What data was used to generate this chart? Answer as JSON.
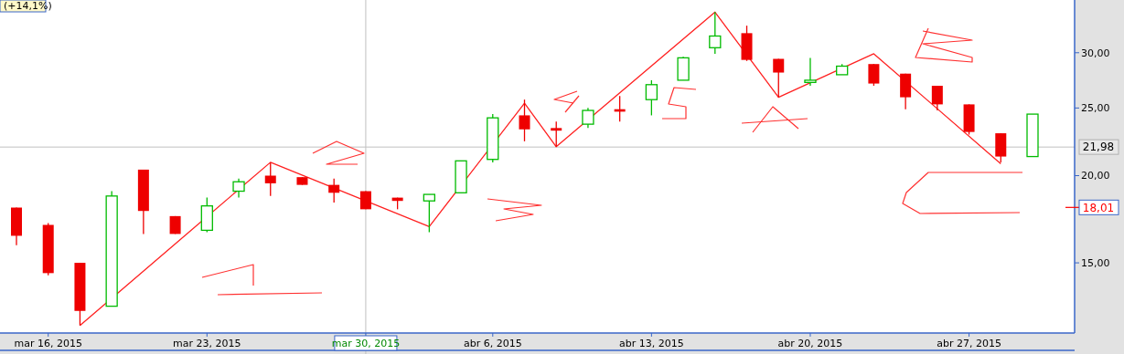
{
  "chart_data": {
    "type": "candlestick",
    "log": true,
    "ylim": [
      11.9,
      35.7
    ],
    "yticks": [
      {
        "value": 15,
        "label": "15,00"
      },
      {
        "value": 20,
        "label": "20,00"
      },
      {
        "value": 25,
        "label": "25,00"
      },
      {
        "value": 30,
        "label": "30,00"
      }
    ],
    "categories": [
      null,
      "mar 16, 2015",
      null,
      null,
      null,
      null,
      "mar 23, 2015",
      null,
      null,
      null,
      null,
      "mar 30, 2015",
      null,
      null,
      null,
      "abr 6, 2015",
      null,
      null,
      null,
      null,
      "abr 13, 2015",
      null,
      null,
      null,
      null,
      "abr 20, 2015",
      null,
      null,
      null,
      null,
      "abr 27, 2015",
      null,
      null
    ],
    "ohlc": [
      [
        18.0,
        18.0,
        15.9,
        16.4
      ],
      [
        17.0,
        17.1,
        14.4,
        14.5
      ],
      [
        15.0,
        15.0,
        12.2,
        12.8
      ],
      [
        13.0,
        19.0,
        13.0,
        18.7
      ],
      [
        20.4,
        20.4,
        16.5,
        17.8
      ],
      [
        17.5,
        17.5,
        16.5,
        16.5
      ],
      [
        16.7,
        18.6,
        16.6,
        18.1
      ],
      [
        19.0,
        19.8,
        18.6,
        19.6
      ],
      [
        20.0,
        20.9,
        18.7,
        19.5
      ],
      [
        19.9,
        19.9,
        19.4,
        19.4
      ],
      [
        19.4,
        19.8,
        18.3,
        18.9
      ],
      [
        19.0,
        19.0,
        17.9,
        17.9
      ],
      [
        18.6,
        18.6,
        17.9,
        18.4
      ],
      [
        18.4,
        18.8,
        16.6,
        18.8
      ],
      [
        18.9,
        21.0,
        18.9,
        21.0
      ],
      [
        21.1,
        24.5,
        20.9,
        24.2
      ],
      [
        24.4,
        25.7,
        22.4,
        23.3
      ],
      [
        23.4,
        23.9,
        22.0,
        23.2
      ],
      [
        23.7,
        25.0,
        23.4,
        24.8
      ],
      [
        24.9,
        26.0,
        23.9,
        24.7
      ],
      [
        25.7,
        27.4,
        24.4,
        27.0
      ],
      [
        27.4,
        29.6,
        27.4,
        29.5
      ],
      [
        30.5,
        34.3,
        29.9,
        31.7
      ],
      [
        32.0,
        32.8,
        29.2,
        29.3
      ],
      [
        29.4,
        29.4,
        25.9,
        28.1
      ],
      [
        27.2,
        29.5,
        26.9,
        27.4
      ],
      [
        27.9,
        28.9,
        27.9,
        28.7
      ],
      [
        28.9,
        28.9,
        26.9,
        27.1
      ],
      [
        28.0,
        28.0,
        24.9,
        25.9
      ],
      [
        26.9,
        26.9,
        24.8,
        25.3
      ],
      [
        25.3,
        25.3,
        22.9,
        23.1
      ],
      [
        23.0,
        23.0,
        20.9,
        21.3
      ],
      [
        21.3,
        24.5,
        21.3,
        24.5
      ]
    ],
    "series": [
      {
        "type": "line",
        "color": "#ff2020",
        "values": [
          null,
          null,
          12.2,
          null,
          null,
          null,
          null,
          null,
          20.9,
          null,
          null,
          null,
          null,
          16.9,
          null,
          null,
          25.4,
          22.0,
          null,
          null,
          null,
          null,
          34.3,
          null,
          25.9,
          null,
          null,
          29.9,
          null,
          null,
          null,
          20.8,
          null
        ]
      }
    ],
    "ref_lines": [
      {
        "axis": "y",
        "value": 21.98,
        "label": "21,98",
        "color": "#c0c0c0"
      },
      {
        "axis": "y",
        "value": 18.01,
        "label": "18,01",
        "color": "#ff0000"
      },
      {
        "axis": "x",
        "value": "mar 30, 2015",
        "color": "#c0c0c0"
      }
    ],
    "annotations": [
      "(+14,1%)"
    ]
  }
}
